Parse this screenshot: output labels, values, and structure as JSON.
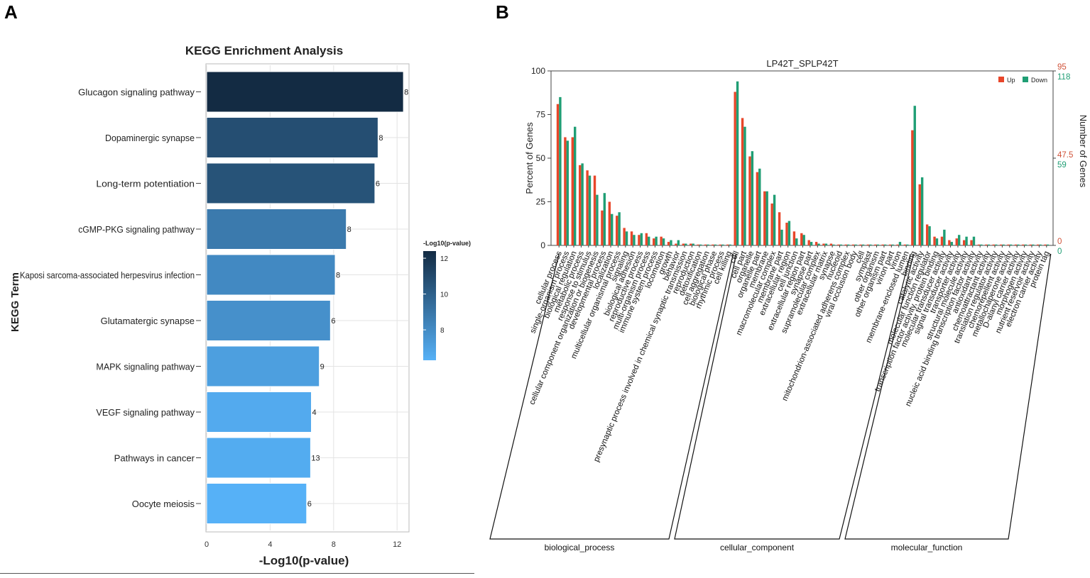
{
  "panels": {
    "a_label": "A",
    "b_label": "B"
  },
  "chart_data": [
    {
      "type": "bar",
      "orientation": "horizontal",
      "title": "KEGG Enrichment Analysis",
      "xlabel": "-Log10(p-value)",
      "ylabel": "KEGG Term",
      "xlim": [
        0,
        13
      ],
      "xticks": [
        "0",
        "4",
        "8",
        "12"
      ],
      "categories": [
        "Glucagon signaling pathway",
        "Dopaminergic synapse",
        "Long-term potentiation",
        "cGMP-PKG signaling pathway",
        "Kaposi sarcoma-associated herpesvirus infection",
        "Glutamatergic synapse",
        "MAPK signaling pathway",
        "VEGF signaling pathway",
        "Pathways in cancer",
        "Oocyte meiosis"
      ],
      "values": [
        12.4,
        10.8,
        10.6,
        8.8,
        8.1,
        7.8,
        7.1,
        6.6,
        6.55,
        6.3
      ],
      "counts": [
        "8",
        "8",
        "6",
        "8",
        "8",
        "6",
        "9",
        "4",
        "13",
        "6"
      ],
      "legend": {
        "title": "-Log10(p-value)",
        "ticks": [
          "12",
          "10",
          "8"
        ],
        "min": 6.3,
        "max": 12.4,
        "color_low": "#56b1f7",
        "color_high": "#132b43"
      }
    },
    {
      "type": "bar",
      "title": "LP42T_SPLP42T",
      "ylabel": "Percent of Genes",
      "y2label": "Number of Genes",
      "ylim": [
        0,
        100
      ],
      "yticks": [
        "0",
        "25",
        "50",
        "75",
        "100"
      ],
      "y2_up_ticks": [
        "95",
        "47.5",
        "0"
      ],
      "y2_down_ticks": [
        "118",
        "59",
        "0"
      ],
      "legend": [
        {
          "name": "Up",
          "color": "#e8462a"
        },
        {
          "name": "Down",
          "color": "#1f9e74"
        }
      ],
      "groups": [
        {
          "name": "biological_process",
          "categories": [
            "cellular process",
            "single-organism process",
            "biological regulation",
            "metabolic process",
            "response to stimulus",
            "cellular component organization or biogenesis",
            "developmental process",
            "localization",
            "multicellular organismal process",
            "signaling",
            "biological adhesion",
            "reproductive process",
            "multi-organism process",
            "immune system process",
            "locomotion",
            "growth",
            "behavior",
            "presynaptic process involved in chemical synaptic transmission",
            "reproduction",
            "detoxification",
            "cell aggregation",
            "biological phase",
            "rhythmic process",
            "cell killing"
          ]
        },
        {
          "name": "cellular_component",
          "categories": [
            "cell",
            "cell part",
            "organelle",
            "organelle part",
            "membrane",
            "macromolecular complex",
            "membrane part",
            "extracellular region",
            "cell junction",
            "extracellular region part",
            "synapse part",
            "supramolecular complex",
            "extracellular matrix",
            "synapse",
            "nucleoid",
            "mitochondrion-associated adherens complex",
            "viral occlusion body",
            "cell",
            "symplast",
            "other organism",
            "other organism part",
            "virion part",
            "virion",
            "membrane-enclosed lumen"
          ]
        },
        {
          "name": "molecular_function",
          "categories": [
            "binding",
            "catalytic activity",
            "molecular function regulator",
            "transcription factor activity, protein binding",
            "molecular transducer activity",
            "signal transducer activity",
            "transporter activity",
            "structural molecule activity",
            "nucleic acid binding transcription factor activity",
            "antioxidant activity",
            "chemoattractant activity",
            "translation regulator activity",
            "chemorepellent activity",
            "metallochaperone activity",
            "D-alanyl carrier activity",
            "morphogen activity",
            "nutrient reservoir activity",
            "electron carrier activity",
            "protein tag"
          ]
        }
      ],
      "series": [
        {
          "name": "Up",
          "values": [
            81,
            62,
            62,
            46,
            43,
            40,
            20,
            25,
            17,
            10,
            8,
            6,
            7,
            4,
            5,
            2,
            1,
            1,
            1,
            0.5,
            0.5,
            0.5,
            0.5,
            0.5,
            88,
            73,
            51,
            42,
            31,
            24,
            19,
            13,
            8,
            7,
            3,
            2,
            1,
            1,
            0.5,
            0.5,
            0.5,
            0.5,
            0.5,
            0.5,
            0.5,
            0.5,
            0.5,
            0.5,
            66,
            35,
            12,
            5,
            5,
            3,
            4,
            3,
            3,
            0.5,
            0.5,
            0.5,
            0.5,
            0.5,
            0.5,
            0.5,
            0.5,
            0.5,
            0.5
          ]
        },
        {
          "name": "Down",
          "values": [
            85,
            60,
            68,
            47,
            40,
            29,
            30,
            18,
            19,
            8,
            6,
            7,
            5,
            5,
            4,
            3,
            3,
            1,
            1,
            0.5,
            0.5,
            0.5,
            0.5,
            0.5,
            94,
            68,
            54,
            44,
            31,
            29,
            9,
            14,
            4,
            6,
            2,
            1,
            1,
            0.5,
            0.5,
            0.5,
            0.5,
            0.5,
            0.5,
            0.5,
            0.5,
            0.5,
            2,
            0.5,
            80,
            39,
            11,
            4,
            9,
            2,
            6,
            5,
            5,
            0.5,
            0.5,
            0.5,
            0.5,
            0.5,
            0.5,
            0.5,
            0.5,
            0.5,
            0.5
          ]
        }
      ]
    }
  ]
}
